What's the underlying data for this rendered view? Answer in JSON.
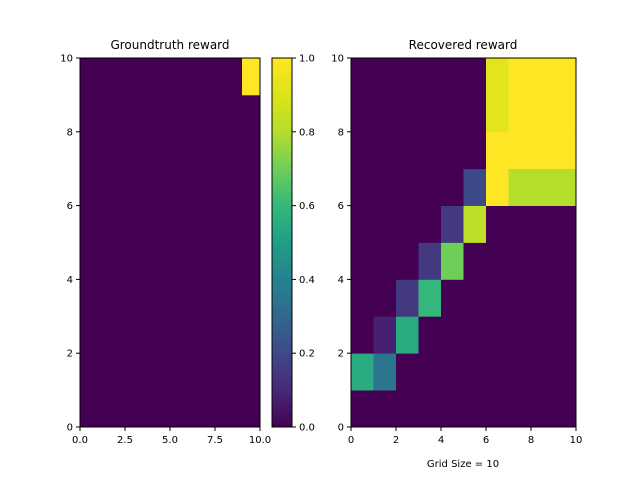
{
  "chart_data": [
    {
      "type": "heatmap",
      "title": "Groundtruth reward",
      "xlabel": "",
      "ylabel": "",
      "xlim": [
        0,
        10
      ],
      "ylim": [
        0,
        10
      ],
      "xticks": [
        "0.0",
        "2.5",
        "5.0",
        "7.5",
        "10.0"
      ],
      "yticks": [
        "0",
        "2",
        "4",
        "6",
        "8",
        "10"
      ],
      "grid_size": 10,
      "values_row_major_bottom_to_top": [
        [
          0,
          0,
          0,
          0,
          0,
          0,
          0,
          0,
          0,
          0
        ],
        [
          0,
          0,
          0,
          0,
          0,
          0,
          0,
          0,
          0,
          0
        ],
        [
          0,
          0,
          0,
          0,
          0,
          0,
          0,
          0,
          0,
          0
        ],
        [
          0,
          0,
          0,
          0,
          0,
          0,
          0,
          0,
          0,
          0
        ],
        [
          0,
          0,
          0,
          0,
          0,
          0,
          0,
          0,
          0,
          0
        ],
        [
          0,
          0,
          0,
          0,
          0,
          0,
          0,
          0,
          0,
          0
        ],
        [
          0,
          0,
          0,
          0,
          0,
          0,
          0,
          0,
          0,
          0
        ],
        [
          0,
          0,
          0,
          0,
          0,
          0,
          0,
          0,
          0,
          0
        ],
        [
          0,
          0,
          0,
          0,
          0,
          0,
          0,
          0,
          0,
          0
        ],
        [
          0,
          0,
          0,
          0,
          0,
          0,
          0,
          0,
          0,
          1
        ]
      ]
    },
    {
      "type": "heatmap",
      "title": "Recovered reward",
      "xlabel": "Grid Size = 10",
      "ylabel": "",
      "xlim": [
        0,
        10
      ],
      "ylim": [
        0,
        10
      ],
      "xticks": [
        "0",
        "2",
        "4",
        "6",
        "8",
        "10"
      ],
      "yticks": [
        "0",
        "2",
        "4",
        "6",
        "8",
        "10"
      ],
      "grid_size": 10,
      "values_row_major_bottom_to_top": [
        [
          0,
          0,
          0,
          0,
          0,
          0,
          0,
          0,
          0,
          0
        ],
        [
          0.55,
          0.35,
          0,
          0,
          0,
          0,
          0,
          0,
          0,
          0
        ],
        [
          0,
          0.08,
          0.55,
          0,
          0,
          0,
          0,
          0,
          0,
          0
        ],
        [
          0,
          0,
          0.15,
          0.6,
          0,
          0,
          0,
          0,
          0,
          0
        ],
        [
          0,
          0,
          0,
          0.15,
          0.7,
          0,
          0,
          0,
          0,
          0
        ],
        [
          0,
          0,
          0,
          0,
          0.15,
          0.82,
          0,
          0,
          0,
          0
        ],
        [
          0,
          0,
          0,
          0,
          0,
          0.2,
          1,
          0.8,
          0.8,
          0.8
        ],
        [
          0,
          0,
          0,
          0,
          0,
          0,
          1,
          1,
          1,
          1
        ],
        [
          0,
          0,
          0,
          0,
          0,
          0,
          0.92,
          1,
          1,
          1
        ],
        [
          0,
          0,
          0,
          0,
          0,
          0,
          0.92,
          1,
          1,
          1
        ]
      ]
    }
  ],
  "colorbar": {
    "colormap": "viridis",
    "range": [
      0,
      1
    ],
    "ticks": [
      "0.0",
      "0.2",
      "0.4",
      "0.6",
      "0.8",
      "1.0"
    ]
  }
}
